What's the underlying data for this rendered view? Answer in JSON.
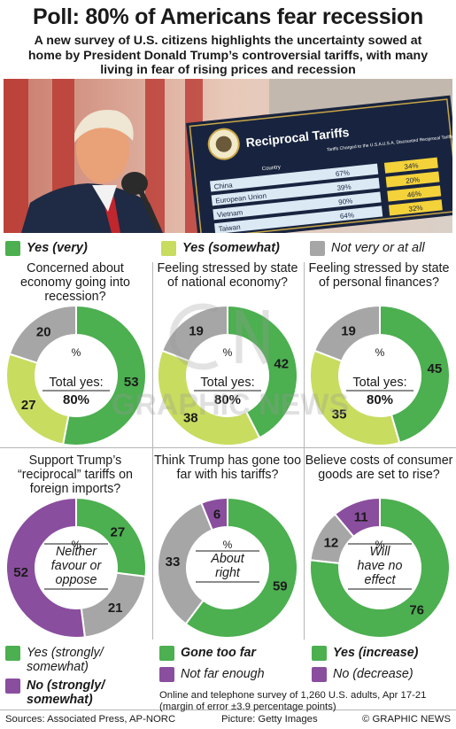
{
  "title": "Poll: 80% of Americans fear recession",
  "subtitle": "A new survey of U.S. citizens highlights the uncertainty sowed at home by President Donald Trump’s controversial tariffs, with many living in fear of rising prices and recession",
  "photo": {
    "sign_title": "Reciprocal Tariffs",
    "country_header": "Country",
    "col1_header": "Tariffs Charged to the U.S.A.",
    "col2_header": "U.S.A. Discounted Reciprocal Tariffs",
    "rows": [
      {
        "country": "China",
        "charged": "67%",
        "reciprocal": "34%"
      },
      {
        "country": "European Union",
        "charged": "39%",
        "reciprocal": "20%"
      },
      {
        "country": "Vietnam",
        "charged": "90%",
        "reciprocal": "46%"
      },
      {
        "country": "Taiwan",
        "charged": "64%",
        "reciprocal": "32%"
      }
    ]
  },
  "colors": {
    "green": "#4caf50",
    "light_green": "#c8dc60",
    "gray": "#a6a6a6",
    "purple": "#8a4e9e"
  },
  "legend_top": [
    {
      "label": "Yes (very)",
      "color": "#4caf50"
    },
    {
      "label": "Yes (somewhat)",
      "color": "#c8dc60"
    },
    {
      "label": "Not very or at all",
      "color": "#a6a6a6"
    }
  ],
  "center_common": {
    "percent": "%",
    "total_label": "Total yes:",
    "total_value": "80%"
  },
  "chart_data": [
    {
      "type": "pie",
      "title": "Concerned about economy going into recession?",
      "categories": [
        "Yes (very)",
        "Yes (somewhat)",
        "Not very or at all"
      ],
      "values": [
        53,
        27,
        20
      ]
    },
    {
      "type": "pie",
      "title": "Feeling stressed by state of national economy?",
      "categories": [
        "Yes (very)",
        "Yes (somewhat)",
        "Not very or at all"
      ],
      "values": [
        42,
        38,
        19
      ]
    },
    {
      "type": "pie",
      "title": "Feeling stressed by state of personal finances?",
      "categories": [
        "Yes (very)",
        "Yes (somewhat)",
        "Not very or at all"
      ],
      "values": [
        45,
        35,
        19
      ]
    },
    {
      "type": "pie",
      "title": "Support Trump’s “reciprocal” tariffs on foreign imports?",
      "categories": [
        "Yes (strongly/ somewhat)",
        "Neither favour or oppose",
        "No (strongly/ somewhat)"
      ],
      "values": [
        27,
        21,
        52
      ],
      "center_label": "Neither favour or oppose"
    },
    {
      "type": "pie",
      "title": "Think Trump has gone too far with his tariffs?",
      "categories": [
        "Gone too far",
        "About right",
        "Not far enough"
      ],
      "values": [
        59,
        33,
        6
      ],
      "center_label": "About right"
    },
    {
      "type": "pie",
      "title": "Believe costs of consumer goods are set to rise?",
      "categories": [
        "Yes (increase)",
        "Will have no effect",
        "No (decrease)"
      ],
      "values": [
        76,
        12,
        11
      ],
      "center_label": "Will have no effect"
    }
  ],
  "legend_bottom": {
    "col1": [
      {
        "label": "Yes (strongly/ somewhat)",
        "color": "#4caf50",
        "bold": false
      },
      {
        "label": "No (strongly/ somewhat)",
        "color": "#8a4e9e",
        "bold": true
      }
    ],
    "col2": [
      {
        "label": "Gone too far",
        "color": "#4caf50",
        "bold": true
      },
      {
        "label": "Not far enough",
        "color": "#8a4e9e",
        "bold": false
      }
    ],
    "col3": [
      {
        "label": "Yes (increase)",
        "color": "#4caf50",
        "bold": true
      },
      {
        "label": "No (decrease)",
        "color": "#8a4e9e",
        "bold": false
      }
    ]
  },
  "note": "Online and telephone survey of 1,260 U.S. adults, Apr 17-21 (margin of error ±3.9 percentage points)",
  "footer": {
    "sources": "Sources: Associated Press, AP-NORC",
    "picture": "Picture: Getty Images",
    "credit": "© GRAPHIC NEWS"
  },
  "watermark_text": "GRAPHIC NEWS"
}
